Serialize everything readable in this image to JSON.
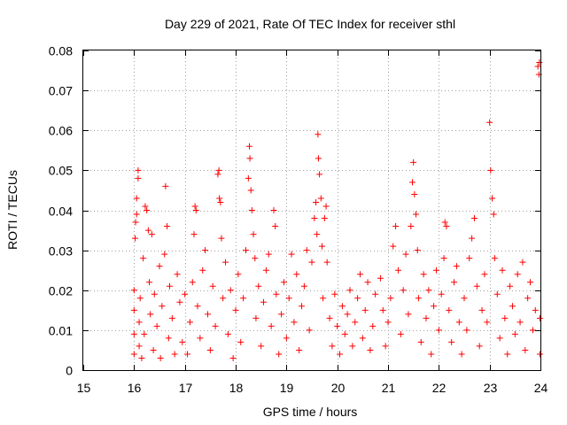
{
  "chart_data": {
    "type": "scatter",
    "title": "Day 229 of 2021, Rate Of TEC Index for receiver sthl",
    "xlabel": "GPS time / hours",
    "ylabel": "ROTI / TECUs",
    "xlim": [
      15,
      24
    ],
    "ylim": [
      0,
      0.08
    ],
    "xticks": [
      15,
      16,
      17,
      18,
      19,
      20,
      21,
      22,
      23,
      24
    ],
    "yticks": [
      0,
      0.01,
      0.02,
      0.03,
      0.04,
      0.05,
      0.06,
      0.07,
      0.08
    ],
    "xtick_labels": [
      "15",
      "16",
      "17",
      "18",
      "19",
      "20",
      "21",
      "22",
      "23",
      "24"
    ],
    "ytick_labels": [
      "0",
      "0.01",
      "0.02",
      "0.03",
      "0.04",
      "0.05",
      "0.06",
      "0.07",
      "0.08"
    ],
    "grid": true,
    "marker": "plus",
    "color": "#ff0000",
    "series": [
      {
        "name": "ROTI",
        "points": [
          [
            16.0,
            0.004
          ],
          [
            16.0,
            0.009
          ],
          [
            16.0,
            0.015
          ],
          [
            16.0,
            0.02
          ],
          [
            16.02,
            0.033
          ],
          [
            16.03,
            0.037
          ],
          [
            16.05,
            0.039
          ],
          [
            16.05,
            0.043
          ],
          [
            16.08,
            0.048
          ],
          [
            16.08,
            0.05
          ],
          [
            16.1,
            0.012
          ],
          [
            16.1,
            0.006
          ],
          [
            16.12,
            0.018
          ],
          [
            16.15,
            0.003
          ],
          [
            16.18,
            0.028
          ],
          [
            16.2,
            0.009
          ],
          [
            16.22,
            0.041
          ],
          [
            16.25,
            0.04
          ],
          [
            16.28,
            0.035
          ],
          [
            16.3,
            0.022
          ],
          [
            16.32,
            0.014
          ],
          [
            16.35,
            0.034
          ],
          [
            16.38,
            0.005
          ],
          [
            16.4,
            0.019
          ],
          [
            16.45,
            0.011
          ],
          [
            16.5,
            0.026
          ],
          [
            16.52,
            0.003
          ],
          [
            16.55,
            0.016
          ],
          [
            16.6,
            0.029
          ],
          [
            16.62,
            0.046
          ],
          [
            16.65,
            0.036
          ],
          [
            16.68,
            0.008
          ],
          [
            16.7,
            0.021
          ],
          [
            16.75,
            0.013
          ],
          [
            16.8,
            0.004
          ],
          [
            16.85,
            0.024
          ],
          [
            16.9,
            0.017
          ],
          [
            16.95,
            0.007
          ],
          [
            17.0,
            0.019
          ],
          [
            17.05,
            0.004
          ],
          [
            17.1,
            0.012
          ],
          [
            17.15,
            0.022
          ],
          [
            17.18,
            0.034
          ],
          [
            17.2,
            0.041
          ],
          [
            17.22,
            0.04
          ],
          [
            17.25,
            0.016
          ],
          [
            17.3,
            0.008
          ],
          [
            17.35,
            0.025
          ],
          [
            17.4,
            0.03
          ],
          [
            17.45,
            0.014
          ],
          [
            17.5,
            0.005
          ],
          [
            17.55,
            0.021
          ],
          [
            17.6,
            0.011
          ],
          [
            17.65,
            0.049
          ],
          [
            17.67,
            0.05
          ],
          [
            17.68,
            0.043
          ],
          [
            17.7,
            0.042
          ],
          [
            17.72,
            0.033
          ],
          [
            17.75,
            0.018
          ],
          [
            17.8,
            0.027
          ],
          [
            17.85,
            0.009
          ],
          [
            17.9,
            0.02
          ],
          [
            17.95,
            0.003
          ],
          [
            18.0,
            0.015
          ],
          [
            18.05,
            0.024
          ],
          [
            18.1,
            0.007
          ],
          [
            18.15,
            0.018
          ],
          [
            18.2,
            0.03
          ],
          [
            18.25,
            0.048
          ],
          [
            18.27,
            0.056
          ],
          [
            18.28,
            0.053
          ],
          [
            18.3,
            0.045
          ],
          [
            18.32,
            0.04
          ],
          [
            18.35,
            0.034
          ],
          [
            18.38,
            0.028
          ],
          [
            18.4,
            0.013
          ],
          [
            18.45,
            0.021
          ],
          [
            18.5,
            0.006
          ],
          [
            18.55,
            0.017
          ],
          [
            18.6,
            0.025
          ],
          [
            18.65,
            0.029
          ],
          [
            18.7,
            0.011
          ],
          [
            18.75,
            0.04
          ],
          [
            18.78,
            0.036
          ],
          [
            18.8,
            0.019
          ],
          [
            18.85,
            0.004
          ],
          [
            18.9,
            0.014
          ],
          [
            18.95,
            0.022
          ],
          [
            19.0,
            0.008
          ],
          [
            19.05,
            0.018
          ],
          [
            19.1,
            0.029
          ],
          [
            19.15,
            0.012
          ],
          [
            19.2,
            0.024
          ],
          [
            19.25,
            0.005
          ],
          [
            19.3,
            0.016
          ],
          [
            19.35,
            0.021
          ],
          [
            19.4,
            0.03
          ],
          [
            19.45,
            0.01
          ],
          [
            19.5,
            0.027
          ],
          [
            19.55,
            0.038
          ],
          [
            19.58,
            0.042
          ],
          [
            19.6,
            0.034
          ],
          [
            19.62,
            0.059
          ],
          [
            19.63,
            0.053
          ],
          [
            19.65,
            0.049
          ],
          [
            19.68,
            0.043
          ],
          [
            19.7,
            0.031
          ],
          [
            19.72,
            0.018
          ],
          [
            19.75,
            0.038
          ],
          [
            19.78,
            0.041
          ],
          [
            19.8,
            0.027
          ],
          [
            19.85,
            0.013
          ],
          [
            19.9,
            0.006
          ],
          [
            19.95,
            0.019
          ],
          [
            20.0,
            0.011
          ],
          [
            20.05,
            0.004
          ],
          [
            20.1,
            0.016
          ],
          [
            20.15,
            0.009
          ],
          [
            20.2,
            0.014
          ],
          [
            20.25,
            0.02
          ],
          [
            20.3,
            0.006
          ],
          [
            20.35,
            0.012
          ],
          [
            20.4,
            0.018
          ],
          [
            20.45,
            0.024
          ],
          [
            20.5,
            0.008
          ],
          [
            20.55,
            0.015
          ],
          [
            20.6,
            0.022
          ],
          [
            20.65,
            0.005
          ],
          [
            20.7,
            0.011
          ],
          [
            20.75,
            0.019
          ],
          [
            20.85,
            0.023
          ],
          [
            20.9,
            0.015
          ],
          [
            20.95,
            0.006
          ],
          [
            21.0,
            0.012
          ],
          [
            21.05,
            0.018
          ],
          [
            21.1,
            0.031
          ],
          [
            21.15,
            0.036
          ],
          [
            21.2,
            0.025
          ],
          [
            21.25,
            0.009
          ],
          [
            21.3,
            0.02
          ],
          [
            21.35,
            0.029
          ],
          [
            21.4,
            0.014
          ],
          [
            21.45,
            0.036
          ],
          [
            21.48,
            0.047
          ],
          [
            21.5,
            0.052
          ],
          [
            21.52,
            0.044
          ],
          [
            21.55,
            0.039
          ],
          [
            21.58,
            0.03
          ],
          [
            21.6,
            0.018
          ],
          [
            21.65,
            0.007
          ],
          [
            21.7,
            0.024
          ],
          [
            21.75,
            0.013
          ],
          [
            21.8,
            0.02
          ],
          [
            21.85,
            0.004
          ],
          [
            21.9,
            0.016
          ],
          [
            21.95,
            0.025
          ],
          [
            22.0,
            0.01
          ],
          [
            22.05,
            0.019
          ],
          [
            22.1,
            0.028
          ],
          [
            22.12,
            0.037
          ],
          [
            22.15,
            0.036
          ],
          [
            22.2,
            0.015
          ],
          [
            22.25,
            0.007
          ],
          [
            22.3,
            0.022
          ],
          [
            22.35,
            0.026
          ],
          [
            22.4,
            0.012
          ],
          [
            22.45,
            0.004
          ],
          [
            22.5,
            0.018
          ],
          [
            22.55,
            0.01
          ],
          [
            22.6,
            0.028
          ],
          [
            22.65,
            0.033
          ],
          [
            22.7,
            0.038
          ],
          [
            22.75,
            0.021
          ],
          [
            22.8,
            0.006
          ],
          [
            22.85,
            0.015
          ],
          [
            22.9,
            0.024
          ],
          [
            22.95,
            0.012
          ],
          [
            23.0,
            0.062
          ],
          [
            23.02,
            0.05
          ],
          [
            23.05,
            0.043
          ],
          [
            23.08,
            0.039
          ],
          [
            23.1,
            0.028
          ],
          [
            23.15,
            0.019
          ],
          [
            23.2,
            0.008
          ],
          [
            23.25,
            0.025
          ],
          [
            23.3,
            0.013
          ],
          [
            23.35,
            0.004
          ],
          [
            23.4,
            0.021
          ],
          [
            23.45,
            0.016
          ],
          [
            23.5,
            0.009
          ],
          [
            23.55,
            0.024
          ],
          [
            23.6,
            0.012
          ],
          [
            23.65,
            0.027
          ],
          [
            23.7,
            0.005
          ],
          [
            23.75,
            0.018
          ],
          [
            23.8,
            0.022
          ],
          [
            23.85,
            0.01
          ],
          [
            23.9,
            0.015
          ],
          [
            23.95,
            0.076
          ],
          [
            23.97,
            0.074
          ],
          [
            23.98,
            0.077
          ],
          [
            23.99,
            0.013
          ],
          [
            23.99,
            0.004
          ]
        ]
      }
    ]
  }
}
